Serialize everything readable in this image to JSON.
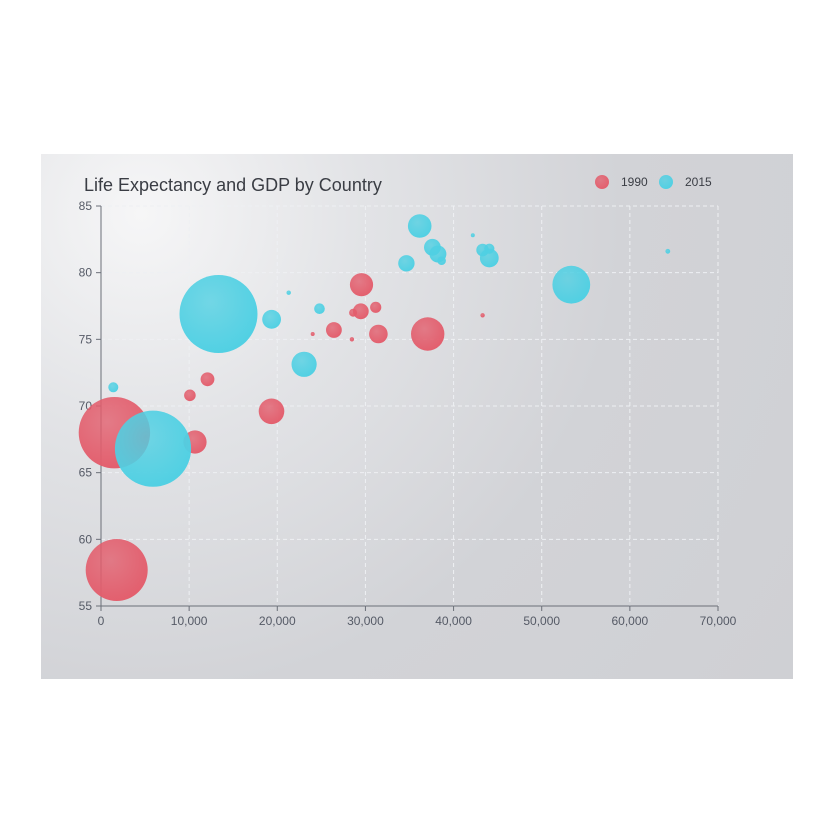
{
  "chart_data": {
    "type": "scatter",
    "variant": "bubble",
    "title": "Life Expectancy and GDP by Country",
    "xlabel": "",
    "ylabel": "",
    "xlim": [
      0,
      70000
    ],
    "ylim": [
      55,
      85
    ],
    "x_ticks": [
      "0",
      "10,000",
      "20,000",
      "30,000",
      "40,000",
      "50,000",
      "60,000",
      "70,000"
    ],
    "y_ticks": [
      "55",
      "60",
      "65",
      "70",
      "75",
      "80",
      "85"
    ],
    "grid": true,
    "legend_position": "top-right",
    "size_variable": "population",
    "series": [
      {
        "name": "1990",
        "color": "#e35d6c",
        "points": [
          {
            "x": 1516,
            "y": 68,
            "size": 1154605773
          },
          {
            "x": 1777,
            "y": 57.7,
            "size": 870601776
          },
          {
            "x": 10670,
            "y": 67.3,
            "size": 122249285
          },
          {
            "x": 37062,
            "y": 75.4,
            "size": 252847810
          },
          {
            "x": 19349,
            "y": 69.6,
            "size": 147568552
          },
          {
            "x": 29550,
            "y": 79.1,
            "size": 122249285
          },
          {
            "x": 31476,
            "y": 75.4,
            "size": 77509490
          },
          {
            "x": 26424,
            "y": 75.7,
            "size": 57110117
          },
          {
            "x": 29476,
            "y": 77.1,
            "size": 56943299
          },
          {
            "x": 31163,
            "y": 77.4,
            "size": 28306220
          },
          {
            "x": 28599,
            "y": 77,
            "size": 14666337
          },
          {
            "x": 12087,
            "y": 72,
            "size": 42972254
          },
          {
            "x": 10088,
            "y": 70.8,
            "size": 30209320
          },
          {
            "x": 24021,
            "y": 75.4,
            "size": 3397534
          },
          {
            "x": 28462,
            "y": 75,
            "size": 4240375
          },
          {
            "x": 43296,
            "y": 76.8,
            "size": 4240375
          }
        ]
      },
      {
        "name": "2015",
        "color": "#4fd0e3",
        "points": [
          {
            "x": 13334,
            "y": 76.9,
            "size": 1376048943
          },
          {
            "x": 5903,
            "y": 66.8,
            "size": 1311050527
          },
          {
            "x": 53354,
            "y": 79.1,
            "size": 321773631
          },
          {
            "x": 23038,
            "y": 73.13,
            "size": 143456918
          },
          {
            "x": 36162,
            "y": 83.5,
            "size": 126573481
          },
          {
            "x": 19360,
            "y": 76.5,
            "size": 80000000
          },
          {
            "x": 37599,
            "y": 81.9,
            "size": 64395345
          },
          {
            "x": 38225,
            "y": 81.4,
            "size": 64715810
          },
          {
            "x": 44053,
            "y": 81.1,
            "size": 80688545
          },
          {
            "x": 34644,
            "y": 80.7,
            "size": 60730582
          },
          {
            "x": 1390,
            "y": 71.4,
            "size": 23000000
          },
          {
            "x": 24787,
            "y": 77.3,
            "size": 25000000
          },
          {
            "x": 43294,
            "y": 81.7,
            "size": 35939927
          },
          {
            "x": 44056,
            "y": 81.8,
            "size": 23968973
          },
          {
            "x": 38644,
            "y": 80.9,
            "size": 16937000
          },
          {
            "x": 21291,
            "y": 78.5,
            "size": 4500000
          },
          {
            "x": 64304,
            "y": 81.6,
            "size": 5210967
          },
          {
            "x": 42177,
            "y": 82.8,
            "size": 352000
          }
        ]
      }
    ]
  }
}
